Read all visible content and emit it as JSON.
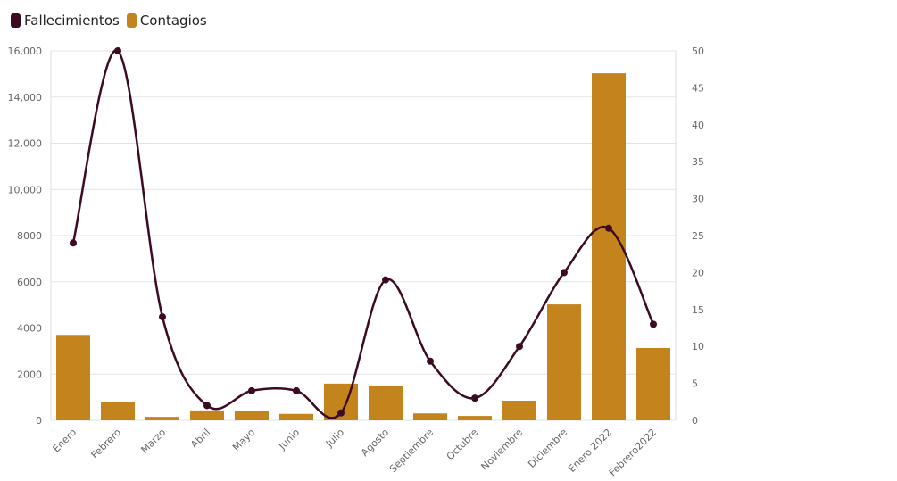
{
  "chart_data": {
    "type": "bar+line",
    "categories": [
      "Enero",
      "Febrero",
      "Marzo",
      "Abril",
      "Mayo",
      "Junio",
      "Julio",
      "Agosto",
      "Septiembre",
      "Octubre",
      "Noviembre",
      "Diciembre",
      "Enero 2022",
      "Febrero2022"
    ],
    "series": [
      {
        "name": "Fallecimientos",
        "type": "line",
        "axis": "right",
        "color": "#3d0a24",
        "values": [
          24,
          50,
          14,
          2,
          4,
          4,
          1,
          19,
          8,
          3,
          10,
          20,
          26,
          13
        ]
      },
      {
        "name": "Contagios",
        "type": "bar",
        "axis": "left",
        "color": "#c4841d",
        "values": [
          3700,
          780,
          150,
          430,
          390,
          280,
          1590,
          1470,
          300,
          190,
          850,
          5020,
          15030,
          3130
        ]
      }
    ],
    "left_axis": {
      "ylim": [
        0,
        16000
      ],
      "ticks": [
        "0",
        "2000",
        "4000",
        "6000",
        "8000",
        "10,000",
        "12,000",
        "14,000",
        "16,000"
      ]
    },
    "right_axis": {
      "ylim": [
        0,
        50
      ],
      "ticks": [
        "0",
        "5",
        "10",
        "15",
        "20",
        "25",
        "30",
        "35",
        "40",
        "45",
        "50"
      ]
    },
    "legend_placement": "top-left",
    "grid": true
  }
}
